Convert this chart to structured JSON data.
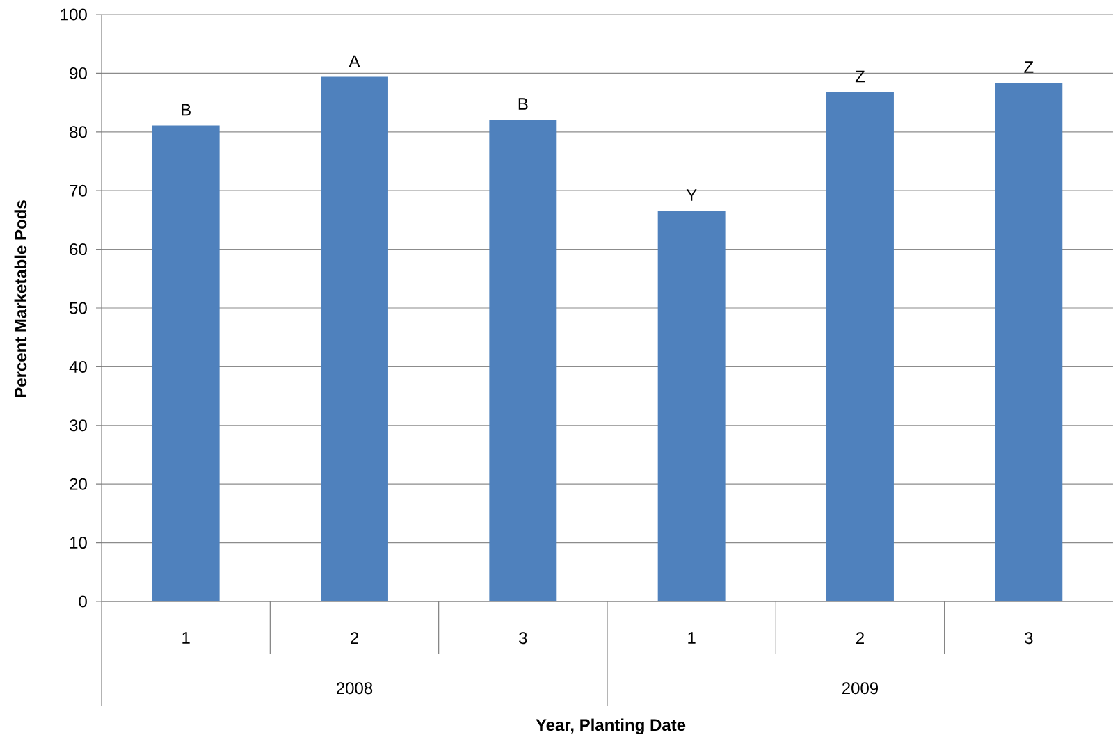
{
  "chart_data": {
    "type": "bar",
    "xlabel": "Year, Planting Date",
    "ylabel": "Percent Marketable Pods",
    "categories": [
      "1",
      "2",
      "3",
      "1",
      "2",
      "3"
    ],
    "values": [
      81.1,
      89.4,
      82.1,
      66.6,
      86.8,
      88.4
    ],
    "value_labels": [
      "B",
      "A",
      "B",
      "Y",
      "Z",
      "Z"
    ],
    "color": "#4f81bd",
    "ylim": [
      0,
      100
    ],
    "yticks": [
      0,
      10,
      20,
      30,
      40,
      50,
      60,
      70,
      80,
      90,
      100
    ],
    "grid": "y",
    "annotations": [
      "2008",
      "2009"
    ]
  }
}
